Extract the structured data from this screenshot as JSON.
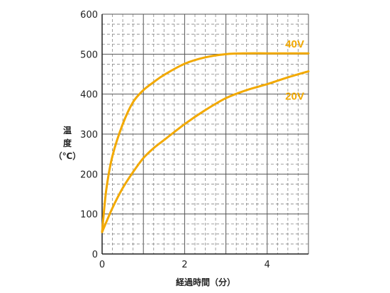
{
  "chart_data": {
    "type": "line",
    "title": "",
    "xlabel": "経過時間（分）",
    "ylabel_lines": [
      "温",
      "度",
      "（℃）"
    ],
    "xlim": [
      0,
      5
    ],
    "ylim": [
      0,
      600
    ],
    "x_ticks": [
      0,
      2,
      4
    ],
    "y_ticks": [
      0,
      100,
      200,
      300,
      400,
      500,
      600
    ],
    "grid": true,
    "series": [
      {
        "name": "40V",
        "color": "#f2a900",
        "x": [
          0,
          0.1,
          0.25,
          0.5,
          0.75,
          1.0,
          1.25,
          1.5,
          2.0,
          2.5,
          3.0,
          3.5,
          4.0,
          4.5,
          5.0
        ],
        "y": [
          55,
          160,
          245,
          325,
          380,
          410,
          430,
          448,
          476,
          492,
          500,
          502,
          502,
          502,
          502
        ]
      },
      {
        "name": "20V",
        "color": "#f2a900",
        "x": [
          0,
          0.25,
          0.5,
          0.75,
          1.0,
          1.25,
          1.5,
          2.0,
          2.5,
          3.0,
          3.5,
          4.0,
          4.5,
          5.0
        ],
        "y": [
          55,
          115,
          165,
          205,
          240,
          265,
          285,
          325,
          360,
          390,
          410,
          425,
          442,
          457
        ]
      }
    ]
  }
}
